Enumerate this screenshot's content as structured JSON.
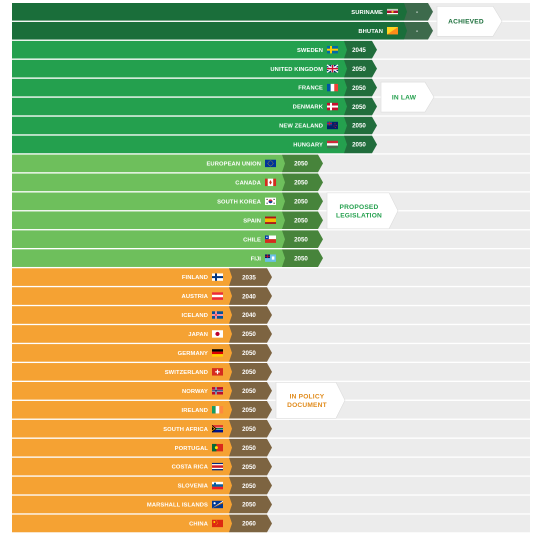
{
  "chart_data": {
    "type": "table",
    "colors": {
      "achieved": "#1a6e3a",
      "achieved_year": "#3d6a4c",
      "in_law": "#24a04e",
      "in_law_year": "#216d3c",
      "proposed": "#6ebf5c",
      "proposed_year": "#47843b",
      "policy": "#f5a233",
      "policy_year": "#7d6441",
      "track": "#ececec"
    },
    "groups": [
      {
        "key": "achieved",
        "label_lines": [
          "ACHIEVED"
        ],
        "rows": [
          {
            "country": "SURINAME",
            "flag": "suriname-flag",
            "year": "-"
          },
          {
            "country": "BHUTAN",
            "flag": "bhutan-flag",
            "year": "-"
          }
        ]
      },
      {
        "key": "in_law",
        "label_lines": [
          "IN LAW"
        ],
        "rows": [
          {
            "country": "SWEDEN",
            "flag": "sweden-flag",
            "year": "2045"
          },
          {
            "country": "UNITED KINGDOM",
            "flag": "uk-flag",
            "year": "2050"
          },
          {
            "country": "FRANCE",
            "flag": "france-flag",
            "year": "2050"
          },
          {
            "country": "DENMARK",
            "flag": "denmark-flag",
            "year": "2050"
          },
          {
            "country": "NEW ZEALAND",
            "flag": "new-zealand-flag",
            "year": "2050"
          },
          {
            "country": "HUNGARY",
            "flag": "hungary-flag",
            "year": "2050"
          }
        ]
      },
      {
        "key": "proposed",
        "label_lines": [
          "PROPOSED",
          "LEGISLATION"
        ],
        "rows": [
          {
            "country": "EUROPEAN UNION",
            "flag": "eu-flag",
            "year": "2050"
          },
          {
            "country": "CANADA",
            "flag": "canada-flag",
            "year": "2050"
          },
          {
            "country": "SOUTH KOREA",
            "flag": "south-korea-flag",
            "year": "2050"
          },
          {
            "country": "SPAIN",
            "flag": "spain-flag",
            "year": "2050"
          },
          {
            "country": "CHILE",
            "flag": "chile-flag",
            "year": "2050"
          },
          {
            "country": "FIJI",
            "flag": "fiji-flag",
            "year": "2050"
          }
        ]
      },
      {
        "key": "policy",
        "label_lines": [
          "IN POLICY",
          "DOCUMENT"
        ],
        "rows": [
          {
            "country": "FINLAND",
            "flag": "finland-flag",
            "year": "2035"
          },
          {
            "country": "AUSTRIA",
            "flag": "austria-flag",
            "year": "2040"
          },
          {
            "country": "ICELAND",
            "flag": "iceland-flag",
            "year": "2040"
          },
          {
            "country": "JAPAN",
            "flag": "japan-flag",
            "year": "2050"
          },
          {
            "country": "GERMANY",
            "flag": "germany-flag",
            "year": "2050"
          },
          {
            "country": "SWITZERLAND",
            "flag": "switzerland-flag",
            "year": "2050"
          },
          {
            "country": "NORWAY",
            "flag": "norway-flag",
            "year": "2050"
          },
          {
            "country": "IRELAND",
            "flag": "ireland-flag",
            "year": "2050"
          },
          {
            "country": "SOUTH AFRICA",
            "flag": "south-africa-flag",
            "year": "2050"
          },
          {
            "country": "PORTUGAL",
            "flag": "portugal-flag",
            "year": "2050"
          },
          {
            "country": "COSTA RICA",
            "flag": "costa-rica-flag",
            "year": "2050"
          },
          {
            "country": "SLOVENIA",
            "flag": "slovenia-flag",
            "year": "2050"
          },
          {
            "country": "MARSHALL ISLANDS",
            "flag": "marshall-islands-flag",
            "year": "2050"
          },
          {
            "country": "CHINA",
            "flag": "china-flag",
            "year": "2060"
          }
        ]
      }
    ]
  }
}
